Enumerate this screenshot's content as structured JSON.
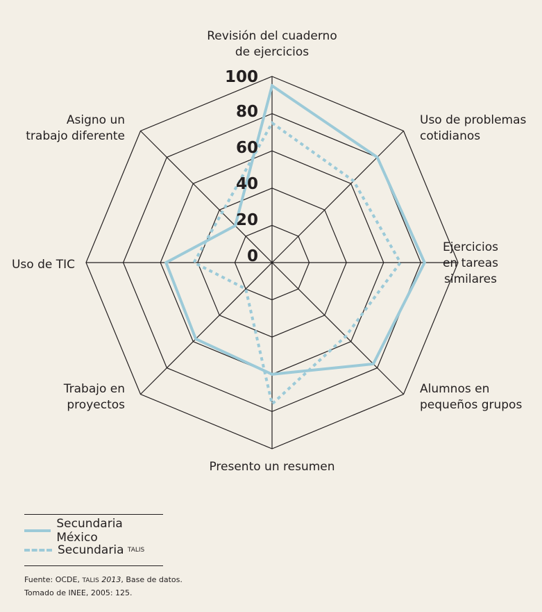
{
  "chart_data": {
    "type": "radar",
    "axes": [
      [
        "Revisión del cuaderno",
        "de ejercicios"
      ],
      [
        "Uso de problemas",
        "cotidianos"
      ],
      [
        "Ejercicios",
        "en tareas",
        "similares"
      ],
      [
        "Alumnos en",
        "pequeños grupos"
      ],
      [
        "Presento un resumen"
      ],
      [
        "Trabajo en",
        "proyectos"
      ],
      [
        "Uso de TIC"
      ],
      [
        "Asigno un",
        "trabajo diferente"
      ]
    ],
    "ticks": [
      "0",
      "20",
      "40",
      "60",
      "80",
      "100"
    ],
    "rmax": 100,
    "series": [
      {
        "name": "Secundaria México",
        "style": "solid",
        "color": "#9ccad8",
        "values": [
          95,
          80,
          82,
          77,
          60,
          58,
          57,
          28
        ]
      },
      {
        "name": "Secundaria TALIS",
        "style": "dashed",
        "color": "#9ccad8",
        "values": [
          75,
          62,
          69,
          56,
          76,
          20,
          42,
          38
        ]
      }
    ],
    "grid_color": "#231f20"
  },
  "legend": {
    "mexico": "Secundaria México",
    "talis_prefix": "Secundaria",
    "talis_sc": "TALIS"
  },
  "source": {
    "line1_a": "Fuente: OCDE,",
    "line1_sc": "TALIS",
    "line1_italic": "2013",
    "line1_b": ", Base de datos.",
    "line2": "Tomado de INEE, 2005: 125."
  }
}
